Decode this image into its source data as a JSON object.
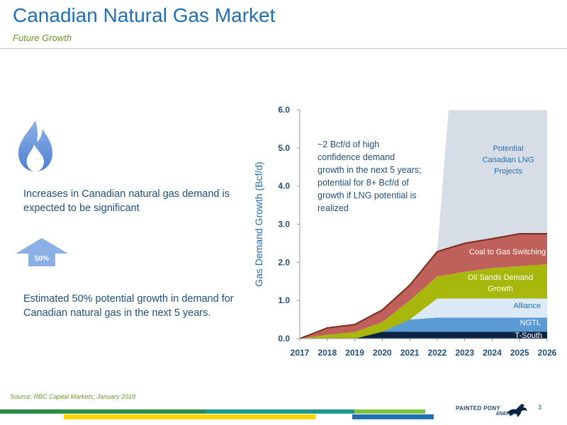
{
  "header": {
    "title": "Canadian Natural Gas Market",
    "subtitle": "Future Growth"
  },
  "left": {
    "icon_flame": "flame-icon",
    "text1": "Increases in Canadian natural gas demand is expected to be significant",
    "icon_arrow": "up-arrow-icon",
    "arrow_label": "50%",
    "text2": "Estimated 50% potential growth in demand for Canadian natural gas in the next 5 years."
  },
  "footer": {
    "source": "Source: RBC Capital Markets; January 2018",
    "logo_line1": "PAINTED PONY",
    "logo_line2": "ENERGY",
    "page_number": "3"
  },
  "colors": {
    "title": "#1f6fb2",
    "subtitle": "#6a9a2a",
    "text": "#1f4e79",
    "tsouth": "#0b2444",
    "ngtl": "#5b9bd5",
    "alliance": "#dce9f6",
    "oilsands": "#a7b70c",
    "coal": "#c0605a",
    "lng": "#d6dde6",
    "outline": "#7b2a1e"
  },
  "chart_data": {
    "type": "area",
    "ylabel": "Gas Demand Growth (Bcf/d)",
    "xlabel": "",
    "x": [
      "2017",
      "2018",
      "2019",
      "2020",
      "2021",
      "2022",
      "2023",
      "2024",
      "2025",
      "2026"
    ],
    "ylim": [
      0,
      6
    ],
    "yticks": [
      "0.0",
      "1.0",
      "2.0",
      "3.0",
      "4.0",
      "5.0",
      "6.0"
    ],
    "stacked": true,
    "series": [
      {
        "name": "T-South",
        "values": [
          0,
          0,
          0,
          0.18,
          0.18,
          0.18,
          0.18,
          0.18,
          0.18,
          0.18
        ]
      },
      {
        "name": "NGTL",
        "values": [
          0,
          0,
          0,
          0,
          0.32,
          0.37,
          0.37,
          0.37,
          0.37,
          0.37
        ]
      },
      {
        "name": "Alliance",
        "values": [
          0,
          0,
          0,
          0,
          0,
          0.5,
          0.5,
          0.5,
          0.5,
          0.5
        ]
      },
      {
        "name": "Oil Sands Demand Growth",
        "values": [
          0,
          0.1,
          0.17,
          0.25,
          0.5,
          0.58,
          0.7,
          0.8,
          0.85,
          0.9
        ]
      },
      {
        "name": "Coal to Gas Switching",
        "values": [
          0,
          0.18,
          0.2,
          0.32,
          0.4,
          0.65,
          0.75,
          0.77,
          0.85,
          0.8
        ]
      },
      {
        "name": "Potential Canadian LNG Projects",
        "values": [
          0,
          0,
          0,
          0,
          0,
          0,
          3.5,
          3.4,
          3.3,
          3.3
        ]
      }
    ],
    "series_labels": [
      "T-South",
      "NGTL",
      "Alliance",
      "Oil Sands Demand",
      "Growth",
      "Coal to Gas Switching",
      "Potential",
      "Canadian LNG",
      "Projects"
    ],
    "annotation": [
      "~2 Bcf/d of high",
      "confidence demand",
      "growth in the next 5 years;",
      "potential for 8+ Bcf/d of",
      "growth if LNG potential is",
      "realized"
    ]
  }
}
